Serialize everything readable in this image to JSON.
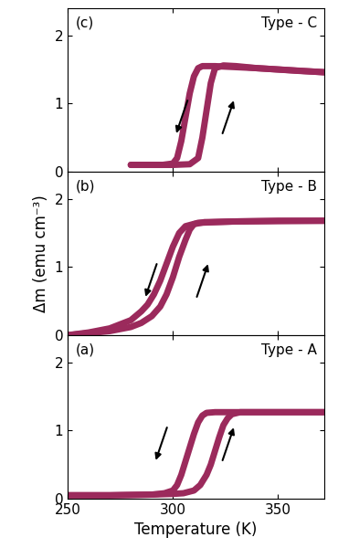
{
  "chart_data": [
    {
      "type": "line",
      "annotations": [
        "(a)",
        "Type - A"
      ],
      "x_label": "Temperature (K)",
      "xlim": [
        250,
        372
      ],
      "xticks": [
        250,
        300,
        350
      ],
      "ylim": [
        0,
        2.4
      ],
      "yticks": [
        0,
        1,
        2
      ],
      "series": [
        {
          "color": "#9b2a5c",
          "x": [
            250,
            270,
            290,
            300,
            305,
            310,
            313,
            316,
            318,
            320,
            322,
            324,
            326,
            328,
            332,
            340,
            360,
            372
          ],
          "values": [
            0.05,
            0.05,
            0.06,
            0.07,
            0.08,
            0.12,
            0.2,
            0.35,
            0.5,
            0.7,
            0.9,
            1.08,
            1.18,
            1.24,
            1.27,
            1.27,
            1.27,
            1.27
          ]
        },
        {
          "color": "#9b2a5c",
          "x": [
            372,
            340,
            320,
            316,
            314,
            312,
            310,
            308,
            306,
            304,
            302,
            300,
            296,
            290,
            270,
            250
          ],
          "values": [
            1.27,
            1.27,
            1.27,
            1.26,
            1.22,
            1.12,
            0.95,
            0.75,
            0.55,
            0.35,
            0.2,
            0.12,
            0.08,
            0.06,
            0.05,
            0.05
          ]
        }
      ]
    },
    {
      "type": "line",
      "annotations": [
        "(b)",
        "Type - B"
      ],
      "y_label": "Δm (emu cm⁻³)",
      "tick_labels": "y",
      "xlim": [
        250,
        372
      ],
      "xticks": [
        250,
        300,
        350
      ],
      "ylim": [
        0,
        2.4
      ],
      "yticks": [
        0,
        1,
        2
      ],
      "series": [
        {
          "color": "#9b2a5c",
          "x": [
            250,
            260,
            270,
            280,
            285,
            290,
            294,
            297,
            300,
            303,
            306,
            308,
            310,
            315,
            330,
            350,
            372
          ],
          "values": [
            0.0,
            0.03,
            0.06,
            0.12,
            0.18,
            0.28,
            0.42,
            0.6,
            0.85,
            1.15,
            1.4,
            1.55,
            1.63,
            1.66,
            1.67,
            1.68,
            1.68
          ]
        },
        {
          "color": "#9b2a5c",
          "x": [
            372,
            330,
            312,
            306,
            303,
            300,
            297,
            294,
            291,
            288,
            285,
            280,
            270,
            260,
            250
          ],
          "values": [
            1.68,
            1.67,
            1.65,
            1.6,
            1.5,
            1.3,
            1.05,
            0.8,
            0.6,
            0.45,
            0.35,
            0.22,
            0.1,
            0.04,
            0.0
          ]
        }
      ]
    },
    {
      "type": "line",
      "annotations": [
        "(c)",
        "Type - C"
      ],
      "tick_labels": "y",
      "xlim": [
        250,
        372
      ],
      "xticks": [
        250,
        300,
        350
      ],
      "ylim": [
        0,
        2.4
      ],
      "yticks": [
        0,
        1,
        2
      ],
      "series": [
        {
          "color": "#9b2a5c",
          "x": [
            280,
            290,
            300,
            308,
            312,
            314,
            316,
            318,
            320,
            324,
            330,
            340,
            350,
            360,
            372
          ],
          "values": [
            0.1,
            0.1,
            0.1,
            0.11,
            0.2,
            0.5,
            0.9,
            1.3,
            1.52,
            1.56,
            1.55,
            1.52,
            1.5,
            1.48,
            1.46
          ]
        },
        {
          "color": "#9b2a5c",
          "x": [
            372,
            340,
            320,
            314,
            312,
            310,
            308,
            306,
            304,
            302,
            300,
            295,
            290,
            280
          ],
          "values": [
            1.46,
            1.52,
            1.55,
            1.55,
            1.52,
            1.4,
            1.15,
            0.8,
            0.45,
            0.2,
            0.12,
            0.1,
            0.1,
            0.1
          ]
        }
      ]
    }
  ]
}
